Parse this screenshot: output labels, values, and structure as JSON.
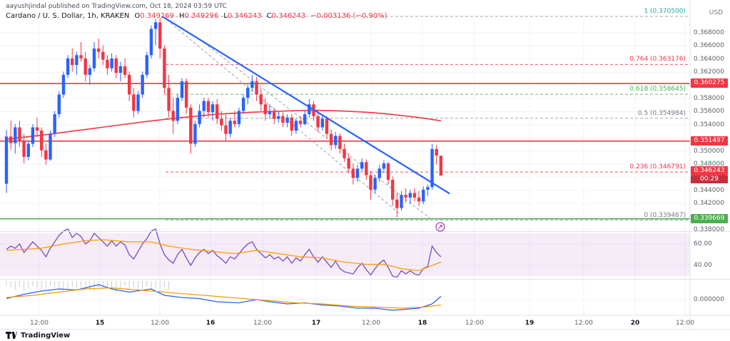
{
  "header": {
    "publish_line": "aayushjindal published on TradingView.com, Oct 18, 2024 03:59 UTC"
  },
  "legend": {
    "title": "Cardano / U. S. Dollar, 1h, KRAKEN",
    "open_label": "O",
    "open": "0.349269",
    "high_label": "H",
    "high": "0.349296",
    "low_label": "L",
    "low": "0.346243",
    "close_label": "C",
    "close": "0.346243",
    "change": "−0.003136 (−0.90%)"
  },
  "axis": {
    "currency": "USD",
    "price_ticks": [
      "0.368000",
      "0.366000",
      "0.364000",
      "0.362000",
      "0.358000",
      "0.356000",
      "0.354000",
      "0.350000",
      "0.348000",
      "0.344000",
      "0.342000",
      "0.338000"
    ],
    "rsi_ticks": [
      "60.00",
      "40.00"
    ],
    "macd_ticks": [
      "0.000000"
    ],
    "time_ticks": [
      {
        "label": "12:00"
      },
      {
        "label": "15",
        "day": true
      },
      {
        "label": "12:00"
      },
      {
        "label": "16",
        "day": true
      },
      {
        "label": "12:00"
      },
      {
        "label": "17",
        "day": true
      },
      {
        "label": "12:00"
      },
      {
        "label": "18",
        "day": true
      },
      {
        "label": "12:00"
      },
      {
        "label": "19",
        "day": true
      },
      {
        "label": "12:00"
      },
      {
        "label": "20",
        "day": true
      },
      {
        "label": "12:00"
      }
    ]
  },
  "footer": {
    "brand": "TradingView"
  },
  "chart_data": {
    "type": "candlestick",
    "title": "Cardano / U. S. Dollar",
    "interval": "1h",
    "exchange": "KRAKEN",
    "ylim": [
      0.338,
      0.3715
    ],
    "up_color": "#2962ff",
    "down_color": "#f23645",
    "candles": [
      [
        0.345,
        0.3532,
        0.3436,
        0.3522
      ],
      [
        0.3522,
        0.3546,
        0.3502,
        0.3512
      ],
      [
        0.3512,
        0.3541,
        0.3496,
        0.3536
      ],
      [
        0.3536,
        0.3546,
        0.3506,
        0.3516
      ],
      [
        0.3516,
        0.3526,
        0.3481,
        0.3491
      ],
      [
        0.3491,
        0.3516,
        0.3486,
        0.3511
      ],
      [
        0.3511,
        0.3541,
        0.3506,
        0.3536
      ],
      [
        0.3536,
        0.3551,
        0.3521,
        0.3531
      ],
      [
        0.3531,
        0.3536,
        0.3491,
        0.3501
      ],
      [
        0.3501,
        0.3511,
        0.3479,
        0.3487
      ],
      [
        0.3487,
        0.3531,
        0.3485,
        0.3526
      ],
      [
        0.3526,
        0.3561,
        0.3521,
        0.3556
      ],
      [
        0.3556,
        0.3591,
        0.3551,
        0.3586
      ],
      [
        0.3586,
        0.3621,
        0.3581,
        0.3616
      ],
      [
        0.3616,
        0.3646,
        0.3611,
        0.3641
      ],
      [
        0.3641,
        0.3656,
        0.3621,
        0.3631
      ],
      [
        0.3631,
        0.3651,
        0.3616,
        0.3646
      ],
      [
        0.3646,
        0.3666,
        0.3636,
        0.3641
      ],
      [
        0.3641,
        0.3651,
        0.3606,
        0.3616
      ],
      [
        0.3616,
        0.3631,
        0.3601,
        0.3626
      ],
      [
        0.3626,
        0.3666,
        0.3621,
        0.3656
      ],
      [
        0.3656,
        0.3671,
        0.3641,
        0.3651
      ],
      [
        0.3651,
        0.3661,
        0.3631,
        0.3639
      ],
      [
        0.3639,
        0.3646,
        0.3616,
        0.3626
      ],
      [
        0.3626,
        0.3649,
        0.3621,
        0.3641
      ],
      [
        0.3641,
        0.3646,
        0.3611,
        0.3619
      ],
      [
        0.3619,
        0.3636,
        0.3606,
        0.3629
      ],
      [
        0.3629,
        0.3641,
        0.3611,
        0.3616
      ],
      [
        0.3616,
        0.3621,
        0.3576,
        0.3586
      ],
      [
        0.3586,
        0.3596,
        0.3551,
        0.3561
      ],
      [
        0.3561,
        0.3591,
        0.3556,
        0.3586
      ],
      [
        0.3586,
        0.3621,
        0.3581,
        0.3616
      ],
      [
        0.3616,
        0.3651,
        0.3611,
        0.3646
      ],
      [
        0.3646,
        0.3691,
        0.3641,
        0.3686
      ],
      [
        0.3686,
        0.3701,
        0.3661,
        0.3696
      ],
      [
        0.3696,
        0.3703,
        0.3641,
        0.3656
      ],
      [
        0.3656,
        0.3661,
        0.3586,
        0.3596
      ],
      [
        0.3596,
        0.3616,
        0.3551,
        0.3561
      ],
      [
        0.3561,
        0.3581,
        0.3526,
        0.3546
      ],
      [
        0.3546,
        0.3586,
        0.3541,
        0.3581
      ],
      [
        0.3581,
        0.3611,
        0.3576,
        0.3606
      ],
      [
        0.3606,
        0.3611,
        0.3556,
        0.3566
      ],
      [
        0.3566,
        0.3571,
        0.3496,
        0.3511
      ],
      [
        0.3511,
        0.3546,
        0.3506,
        0.3541
      ],
      [
        0.3541,
        0.3571,
        0.3536,
        0.3561
      ],
      [
        0.3561,
        0.3581,
        0.3551,
        0.3576
      ],
      [
        0.3576,
        0.3581,
        0.3551,
        0.3559
      ],
      [
        0.3559,
        0.3576,
        0.3546,
        0.3571
      ],
      [
        0.3571,
        0.3579,
        0.3541,
        0.3549
      ],
      [
        0.3549,
        0.3561,
        0.3531,
        0.3539
      ],
      [
        0.3539,
        0.3556,
        0.3516,
        0.3526
      ],
      [
        0.3526,
        0.3551,
        0.3521,
        0.3546
      ],
      [
        0.3546,
        0.3561,
        0.3536,
        0.3541
      ],
      [
        0.3541,
        0.3566,
        0.3536,
        0.3561
      ],
      [
        0.3561,
        0.3586,
        0.3556,
        0.3581
      ],
      [
        0.3581,
        0.3601,
        0.3571,
        0.3596
      ],
      [
        0.3596,
        0.3616,
        0.3591,
        0.3606
      ],
      [
        0.3606,
        0.3613,
        0.3576,
        0.3586
      ],
      [
        0.3586,
        0.3596,
        0.3561,
        0.3571
      ],
      [
        0.3571,
        0.3581,
        0.3546,
        0.3556
      ],
      [
        0.3556,
        0.3571,
        0.3549,
        0.3561
      ],
      [
        0.3561,
        0.3566,
        0.3541,
        0.3549
      ],
      [
        0.3549,
        0.3561,
        0.3543,
        0.3553
      ],
      [
        0.3553,
        0.3559,
        0.3536,
        0.3543
      ],
      [
        0.3543,
        0.3556,
        0.3536,
        0.3551
      ],
      [
        0.3551,
        0.3556,
        0.3523,
        0.3531
      ],
      [
        0.3531,
        0.3549,
        0.3526,
        0.3546
      ],
      [
        0.3546,
        0.3553,
        0.3536,
        0.3541
      ],
      [
        0.3541,
        0.3561,
        0.3539,
        0.3556
      ],
      [
        0.3556,
        0.3579,
        0.3551,
        0.3571
      ],
      [
        0.3571,
        0.3576,
        0.3546,
        0.3553
      ],
      [
        0.3553,
        0.3561,
        0.3529,
        0.3536
      ],
      [
        0.3536,
        0.3556,
        0.3531,
        0.3549
      ],
      [
        0.3549,
        0.3553,
        0.3519,
        0.3526
      ],
      [
        0.3526,
        0.3533,
        0.3501,
        0.3509
      ],
      [
        0.3509,
        0.3529,
        0.3503,
        0.3523
      ],
      [
        0.3523,
        0.3527,
        0.3496,
        0.3503
      ],
      [
        0.3503,
        0.3511,
        0.3483,
        0.3489
      ],
      [
        0.3489,
        0.3496,
        0.3466,
        0.3473
      ],
      [
        0.3473,
        0.3481,
        0.3449,
        0.3459
      ],
      [
        0.3459,
        0.3479,
        0.3453,
        0.3473
      ],
      [
        0.3473,
        0.3489,
        0.3469,
        0.3483
      ],
      [
        0.3483,
        0.3487,
        0.3456,
        0.3463
      ],
      [
        0.3463,
        0.3469,
        0.3426,
        0.3441
      ],
      [
        0.3441,
        0.3463,
        0.3436,
        0.3459
      ],
      [
        0.3459,
        0.3479,
        0.3453,
        0.3473
      ],
      [
        0.3473,
        0.3486,
        0.3466,
        0.3481
      ],
      [
        0.3481,
        0.3483,
        0.3449,
        0.3456
      ],
      [
        0.3456,
        0.3461,
        0.3416,
        0.3426
      ],
      [
        0.3426,
        0.3436,
        0.3399,
        0.3413
      ],
      [
        0.3413,
        0.3439,
        0.3409,
        0.3433
      ],
      [
        0.3433,
        0.3443,
        0.3421,
        0.3429
      ],
      [
        0.3429,
        0.3441,
        0.3419,
        0.3436
      ],
      [
        0.3436,
        0.3443,
        0.3423,
        0.3429
      ],
      [
        0.3429,
        0.3439,
        0.3416,
        0.3423
      ],
      [
        0.3423,
        0.3446,
        0.3419,
        0.3441
      ],
      [
        0.3441,
        0.3449,
        0.3431,
        0.3445
      ],
      [
        0.3445,
        0.3511,
        0.3441,
        0.3503
      ],
      [
        0.3503,
        0.3509,
        0.3479,
        0.3493
      ],
      [
        0.349269,
        0.349296,
        0.346243,
        0.346243
      ]
    ],
    "ma_red": {
      "color": "#f23645",
      "points": [
        [
          0,
          0.3518
        ],
        [
          8,
          0.3524
        ],
        [
          16,
          0.3531
        ],
        [
          24,
          0.3538
        ],
        [
          32,
          0.3545
        ],
        [
          40,
          0.3551
        ],
        [
          48,
          0.3556
        ],
        [
          56,
          0.3559
        ],
        [
          64,
          0.3561
        ],
        [
          70,
          0.3562
        ],
        [
          76,
          0.3561
        ],
        [
          82,
          0.3559
        ],
        [
          86,
          0.3557
        ],
        [
          90,
          0.3554
        ],
        [
          94,
          0.3551
        ],
        [
          99,
          0.3546
        ]
      ]
    },
    "trendline": {
      "color": "#2962ff",
      "from": [
        35.5,
        0.3705
      ],
      "to": [
        101,
        0.3435
      ]
    },
    "dashed_lines": [
      {
        "points": [
          [
            36.5,
            0.37
          ],
          [
            89.5,
            0.3405
          ]
        ]
      },
      {
        "points": [
          [
            45,
            0.3665
          ],
          [
            97,
            0.3395
          ]
        ]
      }
    ],
    "fib_levels": [
      {
        "label": "1 (0.370500)",
        "value": 0.3705,
        "color": "#26a69a",
        "line_color": "#9598a1"
      },
      {
        "label": "0.764 (0.363176)",
        "value": 0.363176,
        "color": "#f23645",
        "line_color": "#f23645"
      },
      {
        "label": "0.618 (0.358645)",
        "value": 0.358645,
        "color": "#4caf50",
        "line_color": "#4caf50"
      },
      {
        "label": "0.5 (0.354984)",
        "value": 0.354984,
        "color": "#787b86",
        "line_color": "#9598a1"
      },
      {
        "label": "0.236 (0.346791)",
        "value": 0.346791,
        "color": "#f23645",
        "line_color": "#f23645"
      },
      {
        "label": "0 (0.339467)",
        "value": 0.339467,
        "color": "#787b86",
        "line_color": "#9598a1"
      }
    ],
    "horizontal_lines": [
      {
        "value": 0.360275,
        "color": "#f23645",
        "badge": "0.360275"
      },
      {
        "value": 0.351497,
        "color": "#f23645",
        "badge": "0.351497"
      },
      {
        "value": 0.339669,
        "color": "#4caf50",
        "badge": "0.339669"
      }
    ],
    "last_price": {
      "value": 0.346243,
      "badge": "0.346243",
      "countdown": "00:29",
      "color": "#f23645"
    },
    "rsi": {
      "color": "#7e57c2",
      "ma_color": "#ff9800",
      "band": [
        30,
        70
      ],
      "band_color": "#9c27b0",
      "values": [
        55,
        58,
        56,
        60,
        52,
        57,
        62,
        58,
        54,
        48,
        56,
        62,
        68,
        72,
        74,
        66,
        70,
        67,
        60,
        63,
        70,
        66,
        62,
        58,
        63,
        58,
        62,
        59,
        50,
        46,
        53,
        60,
        65,
        72,
        74,
        60,
        50,
        45,
        42,
        50,
        55,
        47,
        40,
        47,
        52,
        55,
        51,
        54,
        49,
        46,
        42,
        48,
        46,
        51,
        56,
        60,
        62,
        55,
        51,
        47,
        50,
        46,
        48,
        44,
        48,
        42,
        47,
        44,
        50,
        55,
        48,
        43,
        48,
        43,
        38,
        44,
        37,
        34,
        33,
        32,
        38,
        42,
        36,
        31,
        37,
        42,
        45,
        38,
        30,
        29,
        35,
        32,
        35,
        32,
        31,
        37,
        39,
        58,
        52,
        48
      ],
      "ma_points": [
        [
          0,
          54
        ],
        [
          8,
          56
        ],
        [
          13,
          60
        ],
        [
          18,
          63
        ],
        [
          22,
          64
        ],
        [
          28,
          62
        ],
        [
          33,
          62
        ],
        [
          37,
          58
        ],
        [
          42,
          55
        ],
        [
          47,
          53
        ],
        [
          52,
          51
        ],
        [
          57,
          54
        ],
        [
          62,
          51
        ],
        [
          67,
          48
        ],
        [
          72,
          47
        ],
        [
          77,
          43
        ],
        [
          82,
          41
        ],
        [
          86,
          41
        ],
        [
          90,
          37
        ],
        [
          94,
          35
        ],
        [
          97,
          40
        ],
        [
          99,
          43
        ]
      ]
    },
    "macd": {
      "blue_color": "#2962ff",
      "orange_color": "#ff9800",
      "blue_points": [
        [
          0,
          0.0001
        ],
        [
          4,
          0.0005
        ],
        [
          8,
          0.0008
        ],
        [
          12,
          0.001
        ],
        [
          16,
          0.0009
        ],
        [
          21,
          0.0014
        ],
        [
          24,
          0.001
        ],
        [
          28,
          0.0007
        ],
        [
          33,
          0.001
        ],
        [
          36,
          0.0004
        ],
        [
          40,
          0.0002
        ],
        [
          44,
          0.0001
        ],
        [
          48,
          -0.0002
        ],
        [
          53,
          -0.0003
        ],
        [
          57,
          0.0
        ],
        [
          60,
          -0.0002
        ],
        [
          64,
          -0.0004
        ],
        [
          68,
          -0.0003
        ],
        [
          72,
          -0.0005
        ],
        [
          76,
          -0.0006
        ],
        [
          80,
          -0.0008
        ],
        [
          84,
          -0.0008
        ],
        [
          88,
          -0.001
        ],
        [
          91,
          -0.0009
        ],
        [
          94,
          -0.0008
        ],
        [
          97,
          -0.0004
        ],
        [
          99,
          0.0003
        ]
      ],
      "orange_points": [
        [
          0,
          0.0002
        ],
        [
          6,
          0.0004
        ],
        [
          12,
          0.0007
        ],
        [
          18,
          0.001
        ],
        [
          24,
          0.0011
        ],
        [
          30,
          0.0009
        ],
        [
          36,
          0.0007
        ],
        [
          42,
          0.0005
        ],
        [
          48,
          0.0003
        ],
        [
          54,
          0.0001
        ],
        [
          60,
          -0.0001
        ],
        [
          66,
          -0.0003
        ],
        [
          72,
          -0.0004
        ],
        [
          78,
          -0.0006
        ],
        [
          84,
          -0.0007
        ],
        [
          90,
          -0.0008
        ],
        [
          95,
          -0.0007
        ],
        [
          99,
          -0.0005
        ]
      ],
      "hist_heights": [
        6,
        9,
        12,
        8,
        14,
        10,
        7,
        11,
        13,
        9,
        6,
        10,
        12,
        15,
        11,
        8,
        13,
        10,
        7,
        12,
        14,
        9,
        11,
        8,
        13,
        16,
        10,
        7,
        12,
        9,
        14,
        11,
        8,
        13,
        10,
        15,
        9,
        12
      ]
    }
  }
}
